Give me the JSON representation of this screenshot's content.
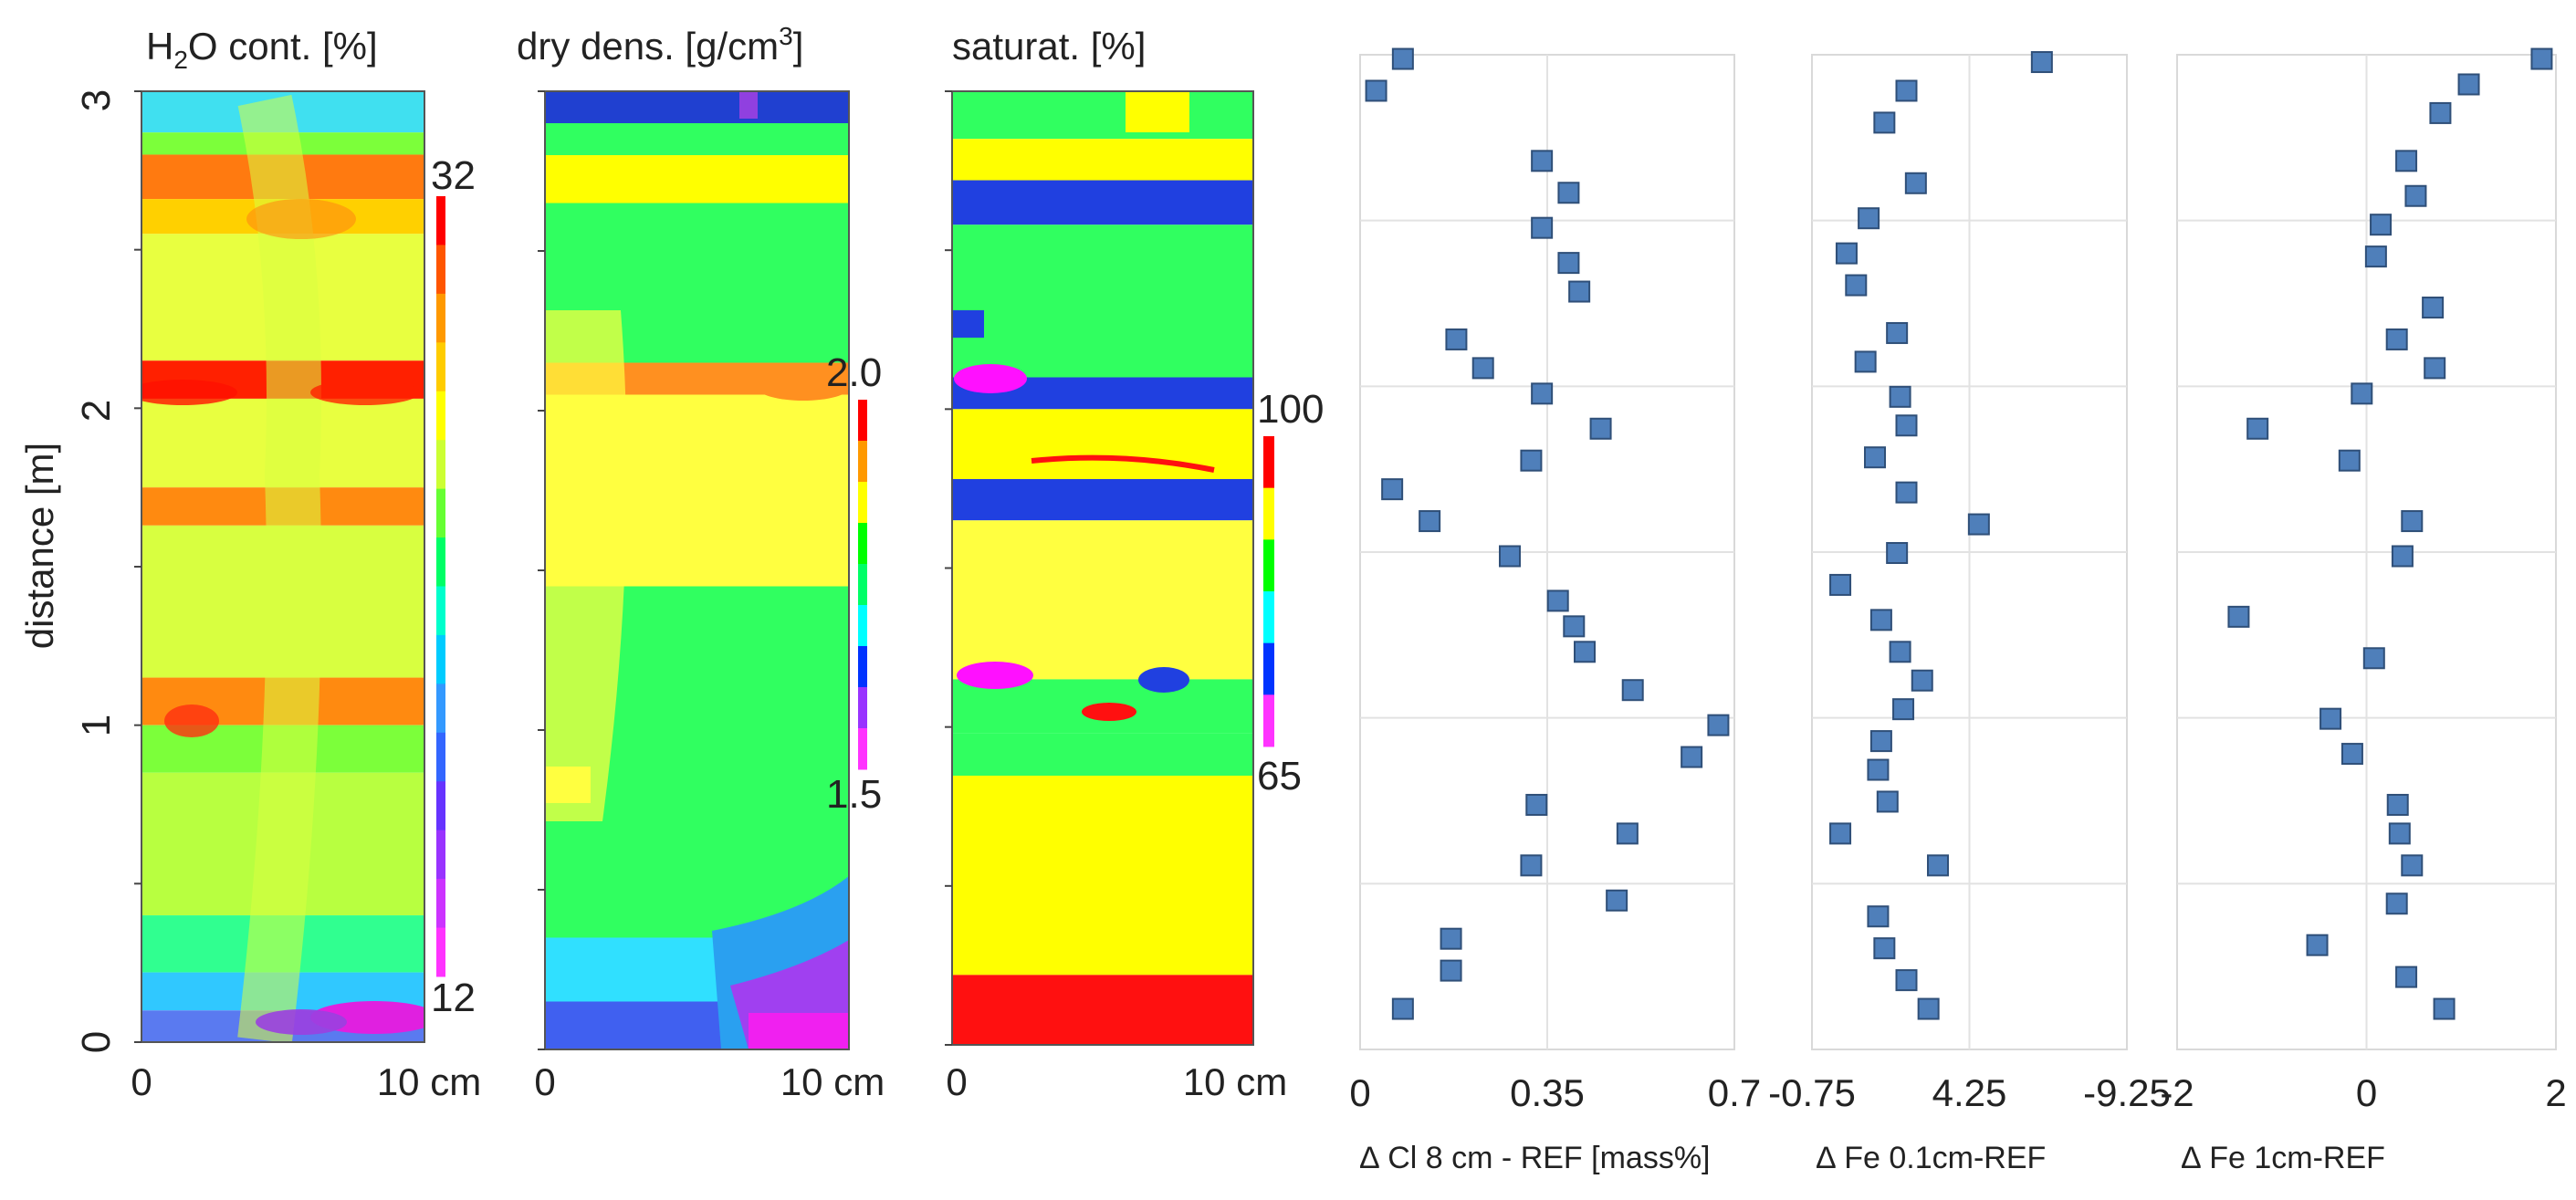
{
  "figure": {
    "ylabel": "distance [m]",
    "y_ticks": [
      {
        "label": "0",
        "value": 0
      },
      {
        "label": "1",
        "value": 1
      },
      {
        "label": "2",
        "value": 2
      },
      {
        "label": "3",
        "value": 3
      }
    ]
  },
  "maps": [
    {
      "name": "water-content-map",
      "title_main": "H",
      "title_sub": "2",
      "title_rest": "O cont. [%]",
      "colorbar_labels": {
        "max": "32",
        "min": "12"
      },
      "x_labels": [
        "0",
        "10 cm"
      ],
      "bands": [
        {
          "y0": 3.0,
          "y1": 2.87,
          "color": "#40e0f0"
        },
        {
          "y0": 2.87,
          "y1": 2.8,
          "color": "#7cff3a"
        },
        {
          "y0": 2.8,
          "y1": 2.66,
          "color": "#ff7a10"
        },
        {
          "y0": 2.66,
          "y1": 2.55,
          "color": "#ffd000"
        },
        {
          "y0": 2.55,
          "y1": 2.15,
          "color": "#e8ff40"
        },
        {
          "y0": 2.15,
          "y1": 2.03,
          "color": "#ff2000"
        },
        {
          "y0": 2.03,
          "y1": 1.75,
          "color": "#e8ff40"
        },
        {
          "y0": 1.75,
          "y1": 1.63,
          "color": "#ff8a10"
        },
        {
          "y0": 1.63,
          "y1": 1.15,
          "color": "#d8ff40"
        },
        {
          "y0": 1.15,
          "y1": 1.0,
          "color": "#ff8a10"
        },
        {
          "y0": 1.0,
          "y1": 0.85,
          "color": "#7cff3a"
        },
        {
          "y0": 0.85,
          "y1": 0.4,
          "color": "#b8ff40"
        },
        {
          "y0": 0.4,
          "y1": 0.22,
          "color": "#30ff90"
        },
        {
          "y0": 0.22,
          "y1": 0.1,
          "color": "#30c8ff"
        },
        {
          "y0": 0.1,
          "y1": 0.0,
          "color": "#5a7af0"
        }
      ],
      "colorbar_colors": [
        "#ff0000",
        "#ff5500",
        "#ff9900",
        "#ffcc00",
        "#ffff00",
        "#ccff33",
        "#66ff33",
        "#00ff66",
        "#00ffcc",
        "#00ccff",
        "#3399ff",
        "#3366ff",
        "#6633ff",
        "#9933ff",
        "#cc33ff",
        "#ff33ff"
      ]
    },
    {
      "name": "dry-density-map",
      "title_main": "dry dens. [g/cm",
      "title_sup": "3",
      "title_rest": "]",
      "colorbar_labels": {
        "max": "2.0",
        "min": "1.5"
      },
      "x_labels": [
        "0",
        "10 cm"
      ],
      "bands": [
        {
          "y0": 3.0,
          "y1": 2.9,
          "color": "#2040d0"
        },
        {
          "y0": 2.9,
          "y1": 2.8,
          "color": "#30ff60"
        },
        {
          "y0": 2.8,
          "y1": 2.65,
          "color": "#ffff00"
        },
        {
          "y0": 2.65,
          "y1": 2.15,
          "color": "#30ff60"
        },
        {
          "y0": 2.15,
          "y1": 2.05,
          "color": "#ff9020"
        },
        {
          "y0": 2.05,
          "y1": 1.45,
          "color": "#ffff40"
        },
        {
          "y0": 1.45,
          "y1": 0.35,
          "color": "#30ff60"
        },
        {
          "y0": 0.35,
          "y1": 0.15,
          "color": "#30e0ff"
        },
        {
          "y0": 0.15,
          "y1": 0.0,
          "color": "#4060f0"
        }
      ],
      "colorbar_colors": [
        "#ff0000",
        "#ff9900",
        "#ffff00",
        "#00ff00",
        "#00ff66",
        "#00ffff",
        "#0033ff",
        "#9933ff",
        "#ff33ff"
      ]
    },
    {
      "name": "saturation-map",
      "title_main": "saturat. [%]",
      "colorbar_labels": {
        "max": "100",
        "min": "65"
      },
      "x_labels": [
        "0",
        "10 cm"
      ],
      "bands": [
        {
          "y0": 3.0,
          "y1": 2.85,
          "color": "#30ff60"
        },
        {
          "y0": 2.85,
          "y1": 2.72,
          "color": "#ffff00"
        },
        {
          "y0": 2.72,
          "y1": 2.58,
          "color": "#2040e0"
        },
        {
          "y0": 2.58,
          "y1": 2.1,
          "color": "#30ff60"
        },
        {
          "y0": 2.1,
          "y1": 2.0,
          "color": "#2040e0"
        },
        {
          "y0": 2.0,
          "y1": 1.78,
          "color": "#ffff00"
        },
        {
          "y0": 1.78,
          "y1": 1.65,
          "color": "#2040e0"
        },
        {
          "y0": 1.65,
          "y1": 1.15,
          "color": "#ffff40"
        },
        {
          "y0": 1.15,
          "y1": 0.98,
          "color": "#30ff60"
        },
        {
          "y0": 0.98,
          "y1": 0.88,
          "color": "#30ff60"
        },
        {
          "y0": 0.88,
          "y1": 0.22,
          "color": "#ffff00"
        },
        {
          "y0": 0.22,
          "y1": 0.0,
          "color": "#ff1010"
        }
      ],
      "colorbar_colors": [
        "#ff0000",
        "#ffff00",
        "#00ff00",
        "#00ffff",
        "#0033ff",
        "#ff33ff"
      ]
    }
  ],
  "chart_data": [
    {
      "type": "scatter",
      "name": "delta-cl-scatter",
      "xlabel": "∆ Cl 8 cm - REF [mass%]",
      "xlim": [
        0,
        0.7
      ],
      "ylim": [
        0,
        3
      ],
      "x_tick_labels": [
        {
          "label": "0",
          "value": 0
        },
        {
          "label": "0.35",
          "value": 0.35
        },
        {
          "label": "0.7",
          "value": 0.7
        }
      ],
      "points": [
        {
          "x": 0.08,
          "y": 0.07
        },
        {
          "x": 0.17,
          "y": 0.19
        },
        {
          "x": 0.17,
          "y": 0.29
        },
        {
          "x": 0.48,
          "y": 0.41
        },
        {
          "x": 0.32,
          "y": 0.52
        },
        {
          "x": 0.5,
          "y": 0.62
        },
        {
          "x": 0.33,
          "y": 0.71
        },
        {
          "x": 0.62,
          "y": 0.86
        },
        {
          "x": 0.67,
          "y": 0.96
        },
        {
          "x": 0.51,
          "y": 1.07
        },
        {
          "x": 0.42,
          "y": 1.19
        },
        {
          "x": 0.4,
          "y": 1.27
        },
        {
          "x": 0.37,
          "y": 1.35
        },
        {
          "x": 0.28,
          "y": 1.49
        },
        {
          "x": 0.13,
          "y": 1.6
        },
        {
          "x": 0.06,
          "y": 1.7
        },
        {
          "x": 0.32,
          "y": 1.79
        },
        {
          "x": 0.45,
          "y": 1.89
        },
        {
          "x": 0.34,
          "y": 2.0
        },
        {
          "x": 0.23,
          "y": 2.08
        },
        {
          "x": 0.18,
          "y": 2.17
        },
        {
          "x": 0.41,
          "y": 2.32
        },
        {
          "x": 0.39,
          "y": 2.41
        },
        {
          "x": 0.34,
          "y": 2.52
        },
        {
          "x": 0.39,
          "y": 2.63
        },
        {
          "x": 0.34,
          "y": 2.73
        },
        {
          "x": 0.03,
          "y": 2.95
        },
        {
          "x": 0.08,
          "y": 3.05
        }
      ]
    },
    {
      "type": "scatter",
      "name": "delta-fe-0-1cm-scatter",
      "xlabel": "∆ Fe 0.1cm-REF",
      "xlim": [
        -0.75,
        -9.25
      ],
      "ylim": [
        0,
        3
      ],
      "x_tick_labels": [
        {
          "label": "-0.75",
          "value": -0.75
        },
        {
          "label": "4.25",
          "value": 4.25
        },
        {
          "label": "-9.25",
          "value": -9.25
        }
      ],
      "x_frac_points": true,
      "points": [
        {
          "x": 0.37,
          "y": 0.07
        },
        {
          "x": 0.3,
          "y": 0.16
        },
        {
          "x": 0.23,
          "y": 0.26
        },
        {
          "x": 0.21,
          "y": 0.36
        },
        {
          "x": 0.4,
          "y": 0.52
        },
        {
          "x": 0.09,
          "y": 0.62
        },
        {
          "x": 0.24,
          "y": 0.72
        },
        {
          "x": 0.21,
          "y": 0.82
        },
        {
          "x": 0.22,
          "y": 0.91
        },
        {
          "x": 0.29,
          "y": 1.01
        },
        {
          "x": 0.35,
          "y": 1.1
        },
        {
          "x": 0.28,
          "y": 1.19
        },
        {
          "x": 0.22,
          "y": 1.29
        },
        {
          "x": 0.09,
          "y": 1.4
        },
        {
          "x": 0.27,
          "y": 1.5
        },
        {
          "x": 0.53,
          "y": 1.59
        },
        {
          "x": 0.3,
          "y": 1.69
        },
        {
          "x": 0.2,
          "y": 1.8
        },
        {
          "x": 0.3,
          "y": 1.9
        },
        {
          "x": 0.28,
          "y": 1.99
        },
        {
          "x": 0.17,
          "y": 2.1
        },
        {
          "x": 0.27,
          "y": 2.19
        },
        {
          "x": 0.14,
          "y": 2.34
        },
        {
          "x": 0.11,
          "y": 2.44
        },
        {
          "x": 0.18,
          "y": 2.55
        },
        {
          "x": 0.33,
          "y": 2.66
        },
        {
          "x": 0.23,
          "y": 2.85
        },
        {
          "x": 0.3,
          "y": 2.95
        },
        {
          "x": 0.73,
          "y": 3.04
        }
      ]
    },
    {
      "type": "scatter",
      "name": "delta-fe-1cm-scatter",
      "xlabel": "∆ Fe 1cm-REF",
      "xlim": [
        -2,
        2
      ],
      "ylim": [
        0,
        3
      ],
      "x_tick_labels": [
        {
          "label": "-2",
          "value": -2
        },
        {
          "label": "0",
          "value": 0
        },
        {
          "label": "2",
          "value": 2
        }
      ],
      "points": [
        {
          "x": 0.82,
          "y": 0.07
        },
        {
          "x": 0.42,
          "y": 0.17
        },
        {
          "x": -0.52,
          "y": 0.27
        },
        {
          "x": 0.32,
          "y": 0.4
        },
        {
          "x": 0.48,
          "y": 0.52
        },
        {
          "x": 0.35,
          "y": 0.62
        },
        {
          "x": 0.33,
          "y": 0.71
        },
        {
          "x": -0.15,
          "y": 0.87
        },
        {
          "x": -0.38,
          "y": 0.98
        },
        {
          "x": 0.08,
          "y": 1.17
        },
        {
          "x": -1.35,
          "y": 1.3
        },
        {
          "x": 0.38,
          "y": 1.49
        },
        {
          "x": 0.48,
          "y": 1.6
        },
        {
          "x": -0.18,
          "y": 1.79
        },
        {
          "x": -1.15,
          "y": 1.89
        },
        {
          "x": -0.05,
          "y": 2.0
        },
        {
          "x": 0.72,
          "y": 2.08
        },
        {
          "x": 0.32,
          "y": 2.17
        },
        {
          "x": 0.7,
          "y": 2.27
        },
        {
          "x": 0.1,
          "y": 2.43
        },
        {
          "x": 0.15,
          "y": 2.53
        },
        {
          "x": 0.52,
          "y": 2.62
        },
        {
          "x": 0.42,
          "y": 2.73
        },
        {
          "x": 0.78,
          "y": 2.88
        },
        {
          "x": 1.08,
          "y": 2.97
        },
        {
          "x": 1.85,
          "y": 3.05
        }
      ]
    }
  ]
}
